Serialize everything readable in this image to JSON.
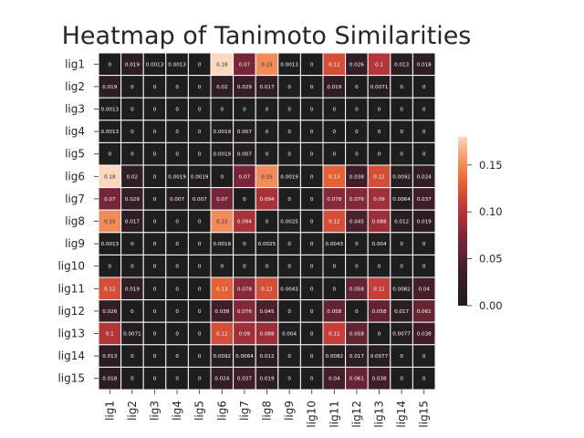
{
  "chart_data": {
    "type": "heatmap",
    "title": "Heatmap of Tanimoto Similarities",
    "rows": [
      "lig1",
      "lig2",
      "lig3",
      "lig4",
      "lig5",
      "lig6",
      "lig7",
      "lig8",
      "lig9",
      "lig10",
      "lig11",
      "lig12",
      "lig13",
      "lig14",
      "lig15"
    ],
    "columns": [
      "lig1",
      "lig2",
      "lig3",
      "lig4",
      "lig5",
      "lig6",
      "lig7",
      "lig8",
      "lig9",
      "lig10",
      "lig11",
      "lig12",
      "lig13",
      "lig14",
      "lig15"
    ],
    "values": [
      [
        0,
        0.019,
        0.0013,
        0.0013,
        0,
        0.18,
        0.07,
        0.15,
        0.0013,
        0,
        0.12,
        0.026,
        0.1,
        0.013,
        0.018
      ],
      [
        0.019,
        0,
        0,
        0,
        0,
        0.02,
        0.029,
        0.017,
        0,
        0,
        0.019,
        0,
        0.0071,
        0,
        0
      ],
      [
        0.0013,
        0,
        0,
        0,
        0,
        0,
        0,
        0,
        0,
        0,
        0,
        0,
        0,
        0,
        0
      ],
      [
        0.0013,
        0,
        0,
        0,
        0,
        0.0019,
        0.007,
        0,
        0,
        0,
        0,
        0,
        0,
        0,
        0
      ],
      [
        0,
        0,
        0,
        0,
        0,
        0.0019,
        0.007,
        0,
        0,
        0,
        0,
        0,
        0,
        0,
        0
      ],
      [
        0.18,
        0.02,
        0,
        0.0019,
        0.0019,
        0,
        0.07,
        0.15,
        0.0019,
        0,
        0.13,
        0.038,
        0.12,
        0.0092,
        0.024
      ],
      [
        0.07,
        0.029,
        0,
        0.007,
        0.007,
        0.07,
        0,
        0.094,
        0,
        0,
        0.078,
        0.076,
        0.09,
        0.0064,
        0.037
      ],
      [
        0.15,
        0.017,
        0,
        0,
        0,
        0.15,
        0.094,
        0,
        0.0025,
        0,
        0.12,
        0.045,
        0.088,
        0.012,
        0.019
      ],
      [
        0.0013,
        0,
        0,
        0,
        0,
        0.0019,
        0,
        0.0025,
        0,
        0,
        0.0043,
        0,
        0.004,
        0,
        0
      ],
      [
        0,
        0,
        0,
        0,
        0,
        0,
        0,
        0,
        0,
        0,
        0,
        0,
        0,
        0,
        0
      ],
      [
        0.12,
        0.019,
        0,
        0,
        0,
        0.13,
        0.078,
        0.12,
        0.0043,
        0,
        0,
        0.058,
        0.11,
        0.0082,
        0.04
      ],
      [
        0.026,
        0,
        0,
        0,
        0,
        0.038,
        0.076,
        0.045,
        0,
        0,
        0.058,
        0,
        0.058,
        0.017,
        0.061
      ],
      [
        0.1,
        0.0071,
        0,
        0,
        0,
        0.12,
        0.09,
        0.088,
        0.004,
        0,
        0.11,
        0.058,
        0,
        0.0077,
        0.038
      ],
      [
        0.013,
        0,
        0,
        0,
        0,
        0.0092,
        0.0064,
        0.012,
        0,
        0,
        0.0082,
        0.017,
        0.0077,
        0,
        0
      ],
      [
        0.018,
        0,
        0,
        0,
        0,
        0.024,
        0.037,
        0.019,
        0,
        0,
        0.04,
        0.061,
        0.038,
        0,
        0
      ]
    ],
    "colorbar": {
      "min": 0,
      "max": 0.18,
      "ticks": [
        "0.00",
        "0.05",
        "0.10",
        "0.15"
      ],
      "colormap": "icefire-dark-centered"
    },
    "annotated": true,
    "legend_position": "right"
  }
}
